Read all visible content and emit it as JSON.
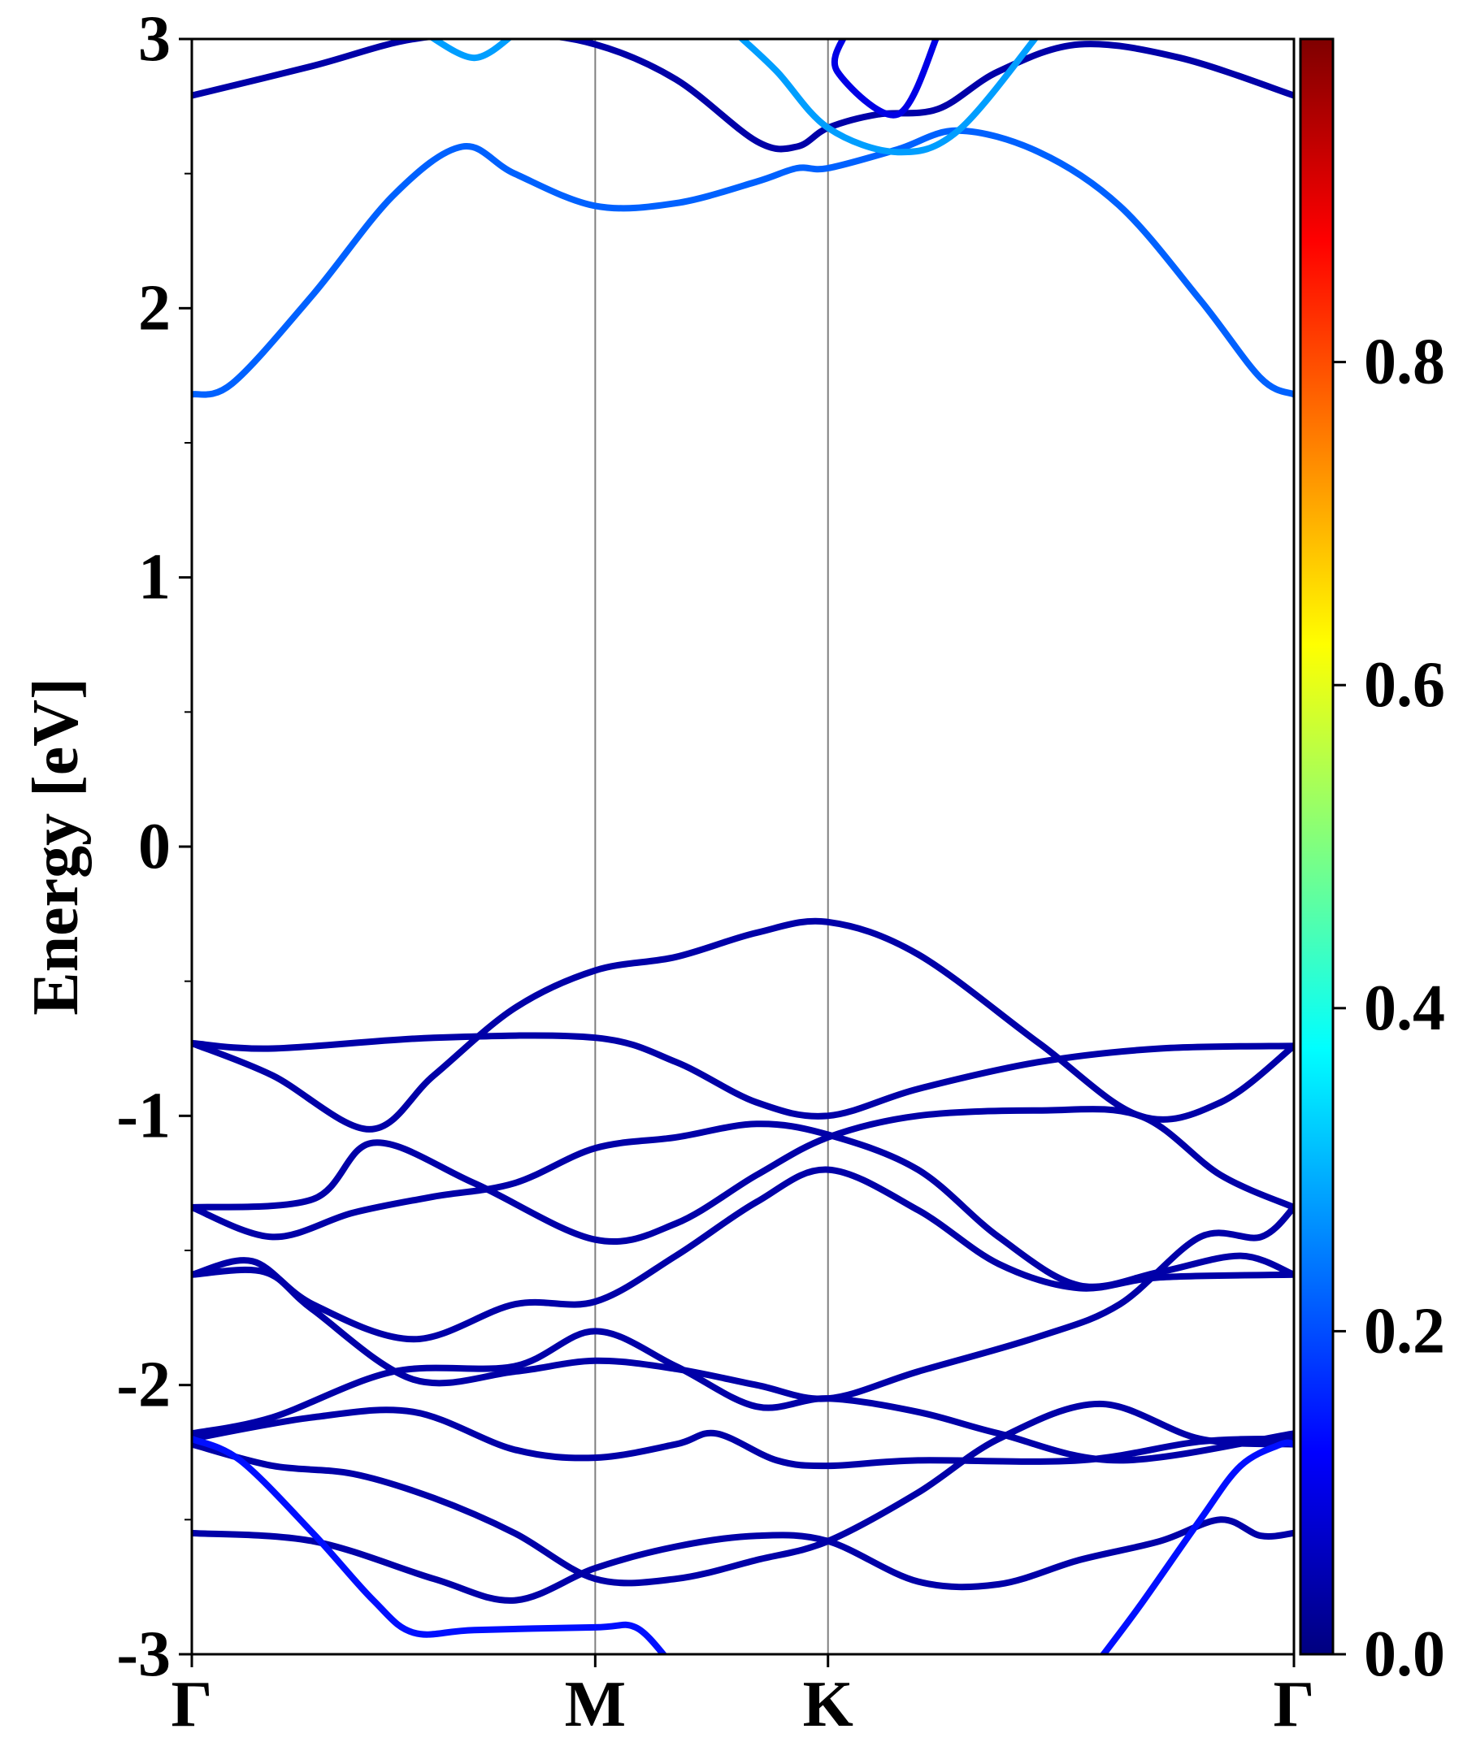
{
  "chart_data": {
    "type": "line",
    "title": "",
    "xlabel": "",
    "ylabel": "Energy [eV]",
    "ylim": [
      -3,
      3
    ],
    "yticks": [
      "-3",
      "-2",
      "-1",
      "0",
      "1",
      "2",
      "3"
    ],
    "kpath": {
      "labels": [
        "Γ",
        "M",
        "K",
        "Γ"
      ],
      "positions": [
        0,
        1,
        1.577,
        2.732
      ]
    },
    "colorbar": {
      "colormap": "jet",
      "range": [
        0,
        1
      ],
      "tick_labels": [
        "0.0",
        "0.2",
        "0.4",
        "0.6",
        "0.8"
      ],
      "tick_values": [
        0,
        0.2,
        0.4,
        0.6,
        0.8
      ]
    },
    "grid": false,
    "series": [
      {
        "weight": 0.04,
        "points": [
          [
            0,
            2.79
          ],
          [
            0.3,
            2.9
          ],
          [
            0.55,
            3.0
          ],
          [
            0.8,
            3.02
          ],
          [
            1.0,
            2.98
          ],
          [
            1.2,
            2.85
          ],
          [
            1.4,
            2.62
          ],
          [
            1.5,
            2.6
          ],
          [
            1.577,
            2.67
          ],
          [
            1.7,
            2.72
          ],
          [
            1.85,
            2.74
          ],
          [
            2.0,
            2.88
          ],
          [
            2.2,
            2.98
          ],
          [
            2.45,
            2.93
          ],
          [
            2.732,
            2.79
          ]
        ]
      },
      {
        "weight": 0.22,
        "points": [
          [
            0,
            1.68
          ],
          [
            0.1,
            1.72
          ],
          [
            0.3,
            2.05
          ],
          [
            0.5,
            2.42
          ],
          [
            0.67,
            2.6
          ],
          [
            0.8,
            2.5
          ],
          [
            1.0,
            2.38
          ],
          [
            1.2,
            2.39
          ],
          [
            1.4,
            2.47
          ],
          [
            1.5,
            2.52
          ],
          [
            1.577,
            2.52
          ],
          [
            1.75,
            2.59
          ],
          [
            1.9,
            2.66
          ],
          [
            2.1,
            2.58
          ],
          [
            2.3,
            2.38
          ],
          [
            2.5,
            2.03
          ],
          [
            2.65,
            1.74
          ],
          [
            2.732,
            1.68
          ]
        ]
      },
      {
        "weight": 0.28,
        "points": [
          [
            0.58,
            3.02
          ],
          [
            0.7,
            2.93
          ],
          [
            0.8,
            3.02
          ]
        ]
      },
      {
        "weight": 0.28,
        "points": [
          [
            1.35,
            3.02
          ],
          [
            1.45,
            2.88
          ],
          [
            1.577,
            2.67
          ],
          [
            1.75,
            2.58
          ],
          [
            1.9,
            2.66
          ],
          [
            2.1,
            3.02
          ]
        ]
      },
      {
        "weight": 0.1,
        "points": [
          [
            1.62,
            3.02
          ],
          [
            1.6,
            2.88
          ],
          [
            1.75,
            2.72
          ],
          [
            1.85,
            3.02
          ]
        ]
      },
      {
        "weight": 0.04,
        "points": [
          [
            0,
            -0.73
          ],
          [
            0.2,
            -0.75
          ],
          [
            0.6,
            -0.71
          ],
          [
            1.0,
            -0.71
          ],
          [
            1.2,
            -0.8
          ],
          [
            1.4,
            -0.95
          ],
          [
            1.577,
            -1.0
          ],
          [
            1.8,
            -0.9
          ],
          [
            2.1,
            -0.8
          ],
          [
            2.4,
            -0.75
          ],
          [
            2.732,
            -0.74
          ]
        ]
      },
      {
        "weight": 0.04,
        "points": [
          [
            0,
            -0.73
          ],
          [
            0.2,
            -0.85
          ],
          [
            0.44,
            -1.05
          ],
          [
            0.6,
            -0.85
          ],
          [
            0.8,
            -0.6
          ],
          [
            1.0,
            -0.46
          ],
          [
            1.2,
            -0.41
          ],
          [
            1.4,
            -0.32
          ],
          [
            1.577,
            -0.28
          ],
          [
            1.8,
            -0.4
          ],
          [
            2.1,
            -0.73
          ],
          [
            2.35,
            -1.0
          ],
          [
            2.55,
            -0.95
          ],
          [
            2.732,
            -0.74
          ]
        ]
      },
      {
        "weight": 0.04,
        "points": [
          [
            0,
            -1.34
          ],
          [
            0.3,
            -1.31
          ],
          [
            0.45,
            -1.1
          ],
          [
            0.7,
            -1.25
          ],
          [
            1.0,
            -1.46
          ],
          [
            1.2,
            -1.4
          ],
          [
            1.4,
            -1.22
          ],
          [
            1.577,
            -1.08
          ],
          [
            1.8,
            -1.0
          ],
          [
            2.1,
            -0.98
          ],
          [
            2.35,
            -1.0
          ],
          [
            2.55,
            -1.22
          ],
          [
            2.732,
            -1.34
          ]
        ]
      },
      {
        "weight": 0.04,
        "points": [
          [
            0,
            -1.34
          ],
          [
            0.2,
            -1.45
          ],
          [
            0.4,
            -1.36
          ],
          [
            0.6,
            -1.3
          ],
          [
            0.8,
            -1.25
          ],
          [
            1.0,
            -1.12
          ],
          [
            1.2,
            -1.08
          ],
          [
            1.4,
            -1.03
          ],
          [
            1.577,
            -1.07
          ],
          [
            1.8,
            -1.2
          ],
          [
            2.0,
            -1.45
          ],
          [
            2.2,
            -1.63
          ],
          [
            2.4,
            -1.58
          ],
          [
            2.6,
            -1.52
          ],
          [
            2.732,
            -1.59
          ]
        ]
      },
      {
        "weight": 0.04,
        "points": [
          [
            0,
            -1.59
          ],
          [
            0.15,
            -1.54
          ],
          [
            0.3,
            -1.7
          ],
          [
            0.55,
            -1.83
          ],
          [
            0.8,
            -1.7
          ],
          [
            1.0,
            -1.69
          ],
          [
            1.2,
            -1.52
          ],
          [
            1.4,
            -1.32
          ],
          [
            1.577,
            -1.2
          ],
          [
            1.8,
            -1.35
          ],
          [
            2.0,
            -1.55
          ],
          [
            2.2,
            -1.64
          ],
          [
            2.4,
            -1.6
          ],
          [
            2.732,
            -1.59
          ]
        ]
      },
      {
        "weight": 0.04,
        "points": [
          [
            0,
            -1.59
          ],
          [
            0.18,
            -1.58
          ],
          [
            0.3,
            -1.72
          ],
          [
            0.55,
            -1.98
          ],
          [
            0.8,
            -1.95
          ],
          [
            1.0,
            -1.91
          ],
          [
            1.2,
            -1.94
          ],
          [
            1.4,
            -2.0
          ],
          [
            1.577,
            -2.05
          ],
          [
            1.8,
            -1.95
          ],
          [
            2.1,
            -1.82
          ],
          [
            2.3,
            -1.7
          ],
          [
            2.5,
            -1.45
          ],
          [
            2.65,
            -1.45
          ],
          [
            2.732,
            -1.34
          ]
        ]
      },
      {
        "weight": 0.04,
        "points": [
          [
            0,
            -2.18
          ],
          [
            0.2,
            -2.12
          ],
          [
            0.5,
            -1.95
          ],
          [
            0.8,
            -1.93
          ],
          [
            1.0,
            -1.8
          ],
          [
            1.2,
            -1.93
          ],
          [
            1.4,
            -2.08
          ],
          [
            1.577,
            -2.05
          ],
          [
            1.8,
            -2.1
          ],
          [
            2.0,
            -2.18
          ],
          [
            2.3,
            -2.28
          ],
          [
            2.732,
            -2.18
          ]
        ]
      },
      {
        "weight": 0.04,
        "points": [
          [
            0,
            -2.2
          ],
          [
            0.3,
            -2.12
          ],
          [
            0.55,
            -2.1
          ],
          [
            0.8,
            -2.24
          ],
          [
            1.0,
            -2.27
          ],
          [
            1.2,
            -2.22
          ],
          [
            1.3,
            -2.18
          ],
          [
            1.45,
            -2.28
          ],
          [
            1.577,
            -2.3
          ],
          [
            1.8,
            -2.28
          ],
          [
            2.2,
            -2.28
          ],
          [
            2.5,
            -2.21
          ],
          [
            2.732,
            -2.2
          ]
        ]
      },
      {
        "weight": 0.04,
        "points": [
          [
            0,
            -2.22
          ],
          [
            0.2,
            -2.3
          ],
          [
            0.4,
            -2.33
          ],
          [
            0.6,
            -2.42
          ],
          [
            0.8,
            -2.55
          ],
          [
            1.0,
            -2.72
          ],
          [
            1.2,
            -2.72
          ],
          [
            1.4,
            -2.65
          ],
          [
            1.577,
            -2.58
          ],
          [
            1.8,
            -2.4
          ],
          [
            2.0,
            -2.2
          ],
          [
            2.25,
            -2.07
          ],
          [
            2.5,
            -2.2
          ],
          [
            2.732,
            -2.22
          ]
        ]
      },
      {
        "weight": 0.04,
        "points": [
          [
            0,
            -2.55
          ],
          [
            0.3,
            -2.58
          ],
          [
            0.6,
            -2.72
          ],
          [
            0.8,
            -2.8
          ],
          [
            1.0,
            -2.68
          ],
          [
            1.2,
            -2.6
          ],
          [
            1.4,
            -2.56
          ],
          [
            1.577,
            -2.58
          ],
          [
            1.8,
            -2.73
          ],
          [
            2.0,
            -2.74
          ],
          [
            2.2,
            -2.65
          ],
          [
            2.4,
            -2.58
          ],
          [
            2.55,
            -2.5
          ],
          [
            2.65,
            -2.56
          ],
          [
            2.732,
            -2.55
          ]
        ]
      },
      {
        "weight": 0.14,
        "points": [
          [
            0,
            -2.2
          ],
          [
            0.12,
            -2.28
          ],
          [
            0.3,
            -2.55
          ],
          [
            0.45,
            -2.8
          ],
          [
            0.55,
            -2.92
          ],
          [
            0.7,
            -2.91
          ],
          [
            1.0,
            -2.9
          ],
          [
            1.1,
            -2.9
          ],
          [
            1.18,
            -3.02
          ]
        ]
      },
      {
        "weight": 0.14,
        "points": [
          [
            2.25,
            -3.02
          ],
          [
            2.35,
            -2.82
          ],
          [
            2.5,
            -2.5
          ],
          [
            2.6,
            -2.3
          ],
          [
            2.7,
            -2.22
          ],
          [
            2.732,
            -2.22
          ]
        ]
      }
    ]
  }
}
